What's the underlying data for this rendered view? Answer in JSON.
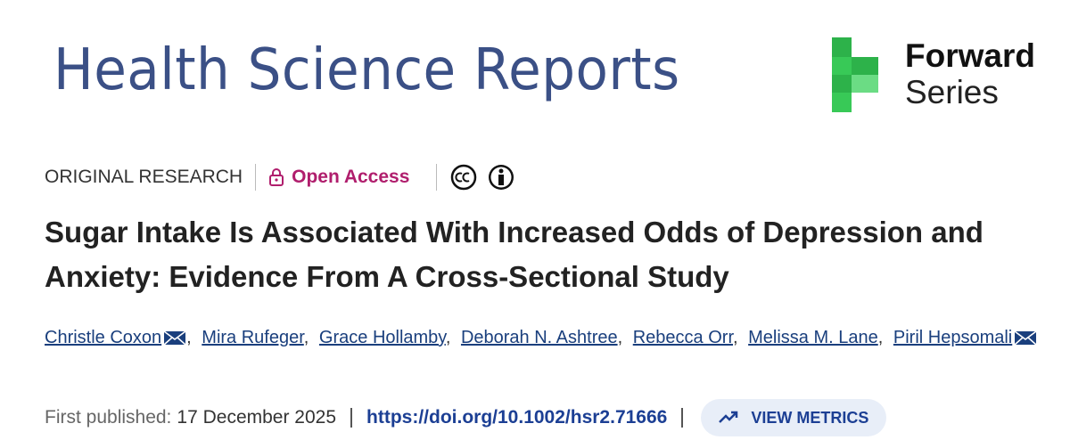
{
  "header": {
    "journal": "Health Science Reports",
    "series_logo": {
      "line1": "Forward",
      "line2": "Series"
    }
  },
  "article": {
    "type": "ORIGINAL RESEARCH",
    "access": "Open Access",
    "title": "Sugar Intake Is Associated With Increased Odds of Depression and Anxiety: Evidence From A Cross-Sectional Study",
    "author_separator": ",",
    "authors": [
      {
        "name": "Christle Coxon",
        "corresponding": true
      },
      {
        "name": "Mira Rufeger",
        "corresponding": false
      },
      {
        "name": "Grace Hollamby",
        "corresponding": false
      },
      {
        "name": "Deborah N. Ashtree",
        "corresponding": false
      },
      {
        "name": "Rebecca Orr",
        "corresponding": false
      },
      {
        "name": "Melissa M. Lane",
        "corresponding": false
      },
      {
        "name": "Piril Hepsomali",
        "corresponding": true
      }
    ],
    "first_published_label": "First published:",
    "first_published_date": "17 December 2025",
    "doi": "https://doi.org/10.1002/hsr2.71666",
    "metrics_button": "VIEW METRICS"
  }
}
